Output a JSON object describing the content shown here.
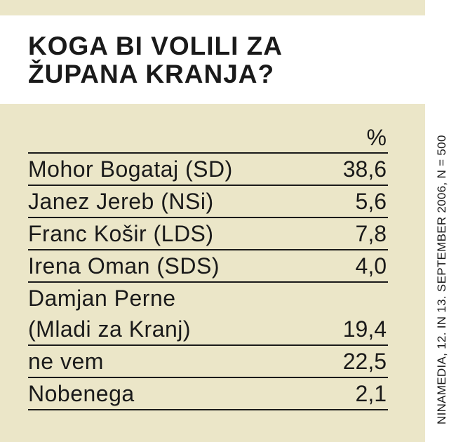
{
  "title": "KOGA BI VOLILI ZA\nŽUPANA KRANJA?",
  "chart_data": {
    "type": "table",
    "title": "KOGA BI VOLILI ZA ŽUPANA KRANJA?",
    "unit_header": "%",
    "rows": [
      {
        "label": "Mohor Bogataj (SD)",
        "value": "38,6"
      },
      {
        "label": "Janez Jereb (NSi)",
        "value": "5,6"
      },
      {
        "label": "Franc Košir (LDS)",
        "value": "7,8"
      },
      {
        "label": "Irena Oman (SDS)",
        "value": "4,0"
      },
      {
        "label": "Damjan Perne\n(Mladi za Kranj)",
        "value": "19,4"
      },
      {
        "label": "ne vem",
        "value": "22,5"
      },
      {
        "label": "Nobenega",
        "value": "2,1"
      }
    ]
  },
  "source": "NINAMEDIA, 12. IN 13. SEPTEMBER 2006, N = 500",
  "colors": {
    "panel": "#ebe6c8",
    "text": "#1a1a1a",
    "background": "#ffffff"
  }
}
